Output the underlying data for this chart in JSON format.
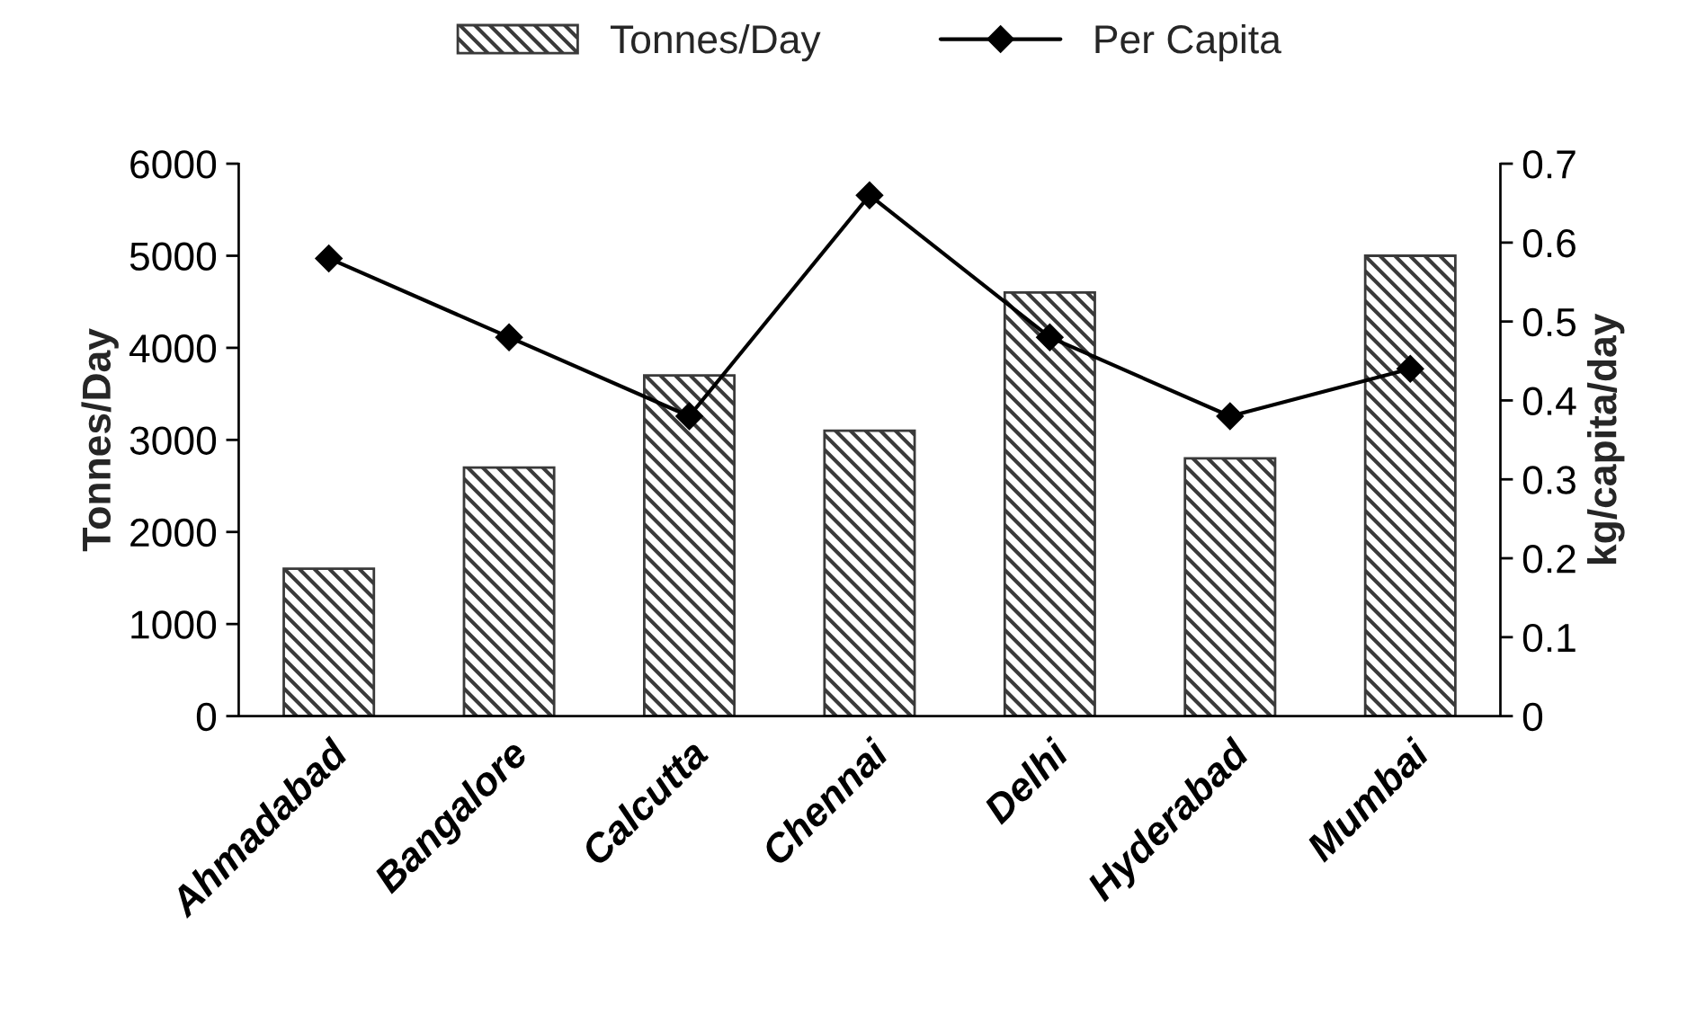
{
  "chart_data": {
    "type": "bar",
    "categories": [
      "Ahmadabad",
      "Bangalore",
      "Calcutta",
      "Chennai",
      "Delhi",
      "Hyderabad",
      "Mumbai"
    ],
    "series": [
      {
        "name": "Tonnes/Day",
        "color": "#3a3a3a",
        "values": [
          1600,
          2700,
          3700,
          3100,
          4600,
          2800,
          5000
        ]
      },
      {
        "name": "Per Capita",
        "type": "line",
        "axis": "y2",
        "color": "#000000",
        "marker": "diamond",
        "values": [
          0.58,
          0.48,
          0.38,
          0.66,
          0.48,
          0.38,
          0.44
        ]
      }
    ],
    "ylabel": "Tonnes/Day",
    "y2label": "kg/capita/day",
    "ylim": [
      0,
      6000
    ],
    "yticks": [
      0,
      1000,
      2000,
      3000,
      4000,
      5000,
      6000
    ],
    "y2lim": [
      0,
      0.7
    ],
    "y2ticks": [
      0,
      0.1,
      0.2,
      0.3,
      0.4,
      0.5,
      0.6,
      0.7
    ],
    "legend": "top",
    "grid": false
  }
}
